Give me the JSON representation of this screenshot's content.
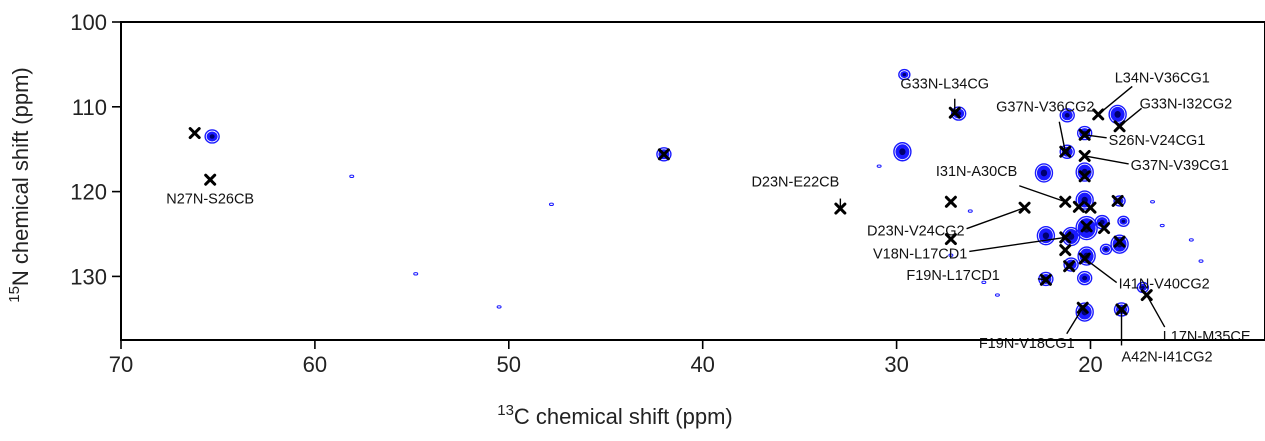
{
  "chart_data": {
    "type": "scatter",
    "xlabel_sup": "13",
    "xlabel_rest": "C  chemical shift (ppm)",
    "ylabel_sup": "15",
    "ylabel_rest": "N chemical shift (ppm)",
    "x_reversed": true,
    "xlim": [
      70,
      11
    ],
    "ylim": [
      100,
      137.5
    ],
    "y_reversed": true,
    "xticks": [
      "70",
      "60",
      "50",
      "40",
      "30",
      "20"
    ],
    "yticks": [
      "100",
      "110",
      "120",
      "130"
    ],
    "grid": false,
    "peak_color": "#1a1aff",
    "peak_core_color": "#00006e",
    "peaks": [
      {
        "x": 65.3,
        "y": 113.5,
        "size": "m"
      },
      {
        "x": 58.1,
        "y": 118.2,
        "size": "t"
      },
      {
        "x": 54.8,
        "y": 129.7,
        "size": "t"
      },
      {
        "x": 50.5,
        "y": 133.6,
        "size": "t"
      },
      {
        "x": 47.8,
        "y": 121.5,
        "size": "t"
      },
      {
        "x": 42.0,
        "y": 115.6,
        "size": "m"
      },
      {
        "x": 30.9,
        "y": 117.0,
        "size": "t"
      },
      {
        "x": 29.7,
        "y": 115.3,
        "size": "l"
      },
      {
        "x": 29.6,
        "y": 106.2,
        "size": "s"
      },
      {
        "x": 27.2,
        "y": 127.5,
        "size": "t"
      },
      {
        "x": 26.8,
        "y": 110.8,
        "size": "m"
      },
      {
        "x": 26.2,
        "y": 122.3,
        "size": "t"
      },
      {
        "x": 25.5,
        "y": 130.7,
        "size": "t"
      },
      {
        "x": 24.8,
        "y": 132.2,
        "size": "t"
      },
      {
        "x": 22.4,
        "y": 117.8,
        "size": "l"
      },
      {
        "x": 22.3,
        "y": 125.2,
        "size": "l"
      },
      {
        "x": 22.3,
        "y": 130.3,
        "size": "m"
      },
      {
        "x": 21.2,
        "y": 111.0,
        "size": "m"
      },
      {
        "x": 21.2,
        "y": 115.3,
        "size": "m"
      },
      {
        "x": 21.0,
        "y": 125.3,
        "size": "l"
      },
      {
        "x": 21.0,
        "y": 128.6,
        "size": "m"
      },
      {
        "x": 20.3,
        "y": 113.1,
        "size": "m"
      },
      {
        "x": 20.3,
        "y": 117.7,
        "size": "l"
      },
      {
        "x": 20.3,
        "y": 121.0,
        "size": "l"
      },
      {
        "x": 20.2,
        "y": 124.3,
        "size": "xl"
      },
      {
        "x": 20.2,
        "y": 127.6,
        "size": "l"
      },
      {
        "x": 20.3,
        "y": 130.2,
        "size": "m"
      },
      {
        "x": 20.3,
        "y": 134.2,
        "size": "l"
      },
      {
        "x": 19.4,
        "y": 123.6,
        "size": "m"
      },
      {
        "x": 19.2,
        "y": 126.8,
        "size": "s"
      },
      {
        "x": 18.6,
        "y": 110.9,
        "size": "l"
      },
      {
        "x": 18.5,
        "y": 121.1,
        "size": "s"
      },
      {
        "x": 18.5,
        "y": 126.2,
        "size": "l"
      },
      {
        "x": 18.3,
        "y": 123.5,
        "size": "s"
      },
      {
        "x": 18.4,
        "y": 133.9,
        "size": "m"
      },
      {
        "x": 17.3,
        "y": 131.3,
        "size": "s"
      },
      {
        "x": 16.8,
        "y": 121.2,
        "size": "t"
      },
      {
        "x": 16.3,
        "y": 124.0,
        "size": "t"
      },
      {
        "x": 14.8,
        "y": 125.7,
        "size": "t"
      },
      {
        "x": 14.3,
        "y": 128.2,
        "size": "t"
      }
    ],
    "assignments": [
      {
        "label": "",
        "x": 66.2,
        "y": 113.1
      },
      {
        "label": "",
        "x": 42.0,
        "y": 115.6
      },
      {
        "label": "N27N-S26CB",
        "x": 65.4,
        "y": 118.6
      },
      {
        "label": "D23N-E22CB",
        "x": 32.9,
        "y": 122.0
      },
      {
        "label": "G33N-L34CG",
        "x": 27.0,
        "y": 110.7
      },
      {
        "label": "G37N-V36CG2",
        "x": 21.3,
        "y": 115.3
      },
      {
        "label": "L34N-V36CG1",
        "x": 19.6,
        "y": 110.9
      },
      {
        "label": "G33N-I32CG2",
        "x": 18.5,
        "y": 112.3
      },
      {
        "label": "S26N-V24CG1",
        "x": 20.3,
        "y": 113.3
      },
      {
        "label": "G37N-V39CG1",
        "x": 20.3,
        "y": 115.8
      },
      {
        "label": "",
        "x": 20.3,
        "y": 118.2
      },
      {
        "label": "I31N-A30CB",
        "x": 21.3,
        "y": 121.2
      },
      {
        "label": "",
        "x": 27.2,
        "y": 121.2
      },
      {
        "label": "",
        "x": 18.6,
        "y": 121.1
      },
      {
        "label": "D23N-V24CG2",
        "x": 23.4,
        "y": 121.9
      },
      {
        "label": "",
        "x": 20.6,
        "y": 121.8
      },
      {
        "label": "",
        "x": 20.0,
        "y": 121.9
      },
      {
        "label": "V18N-L17CD1",
        "x": 21.3,
        "y": 125.4
      },
      {
        "label": "",
        "x": 27.2,
        "y": 125.6
      },
      {
        "label": "",
        "x": 20.2,
        "y": 124.1
      },
      {
        "label": "",
        "x": 19.3,
        "y": 124.3
      },
      {
        "label": "",
        "x": 18.5,
        "y": 125.9
      },
      {
        "label": "",
        "x": 21.3,
        "y": 126.9
      },
      {
        "label": "I41N-V40CG2",
        "x": 20.3,
        "y": 127.9
      },
      {
        "label": "",
        "x": 21.1,
        "y": 128.8
      },
      {
        "label": "F19N-L17CD1",
        "x": 22.3,
        "y": 130.4
      },
      {
        "label": "F19N-V18CG1",
        "x": 20.4,
        "y": 133.7
      },
      {
        "label": "L17N-M35CE",
        "x": 17.1,
        "y": 132.2
      },
      {
        "label": "A42N-I41CG2",
        "x": 18.4,
        "y": 133.9
      }
    ]
  }
}
